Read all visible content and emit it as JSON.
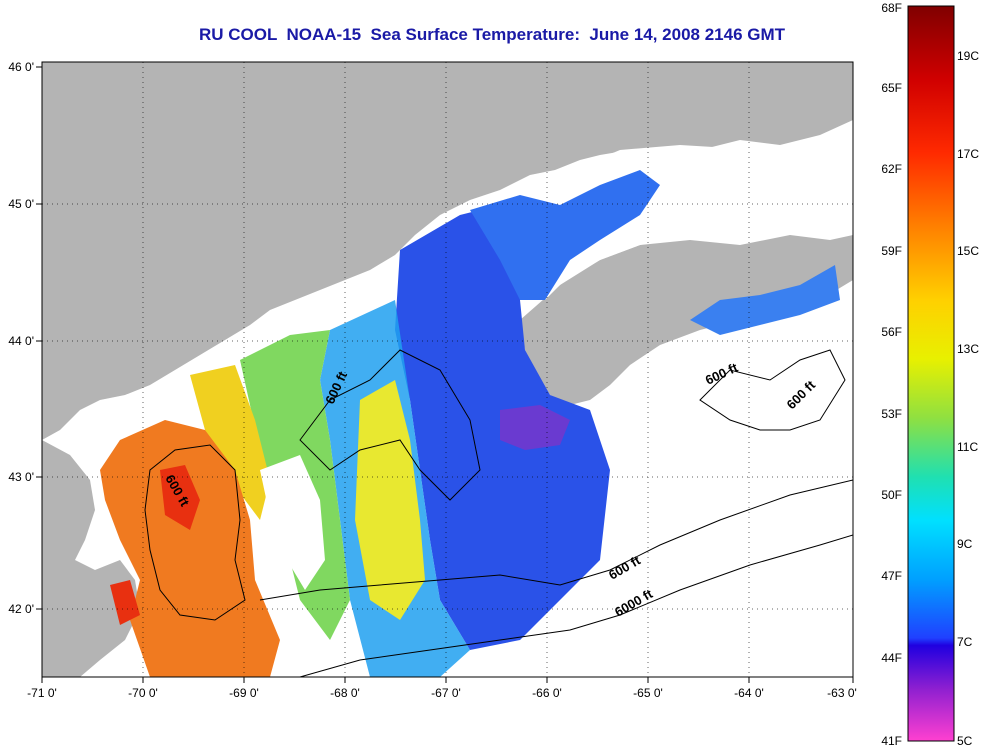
{
  "title": "RU COOL  NOAA-15  Sea Surface Temperature:  June 14, 2008 2146 GMT",
  "map": {
    "lon_ticks": [
      "-71 0'",
      "-70 0'",
      "-69 0'",
      "-68 0'",
      "-67 0'",
      "-66 0'",
      "-65 0'",
      "-64 0'",
      "-63 0'"
    ],
    "lat_ticks": [
      "46 0'",
      "45 0'",
      "44 0'",
      "43 0'",
      "42 0'"
    ],
    "contour_labels": [
      "600 ft",
      "600 ft",
      "600 ft",
      "600 ft",
      "600 ft",
      "6000 ft"
    ],
    "colors": {
      "land": "#b4b4b4",
      "no_data": "#ffffff",
      "warm": "#f07020",
      "cool": "#2050e0"
    }
  },
  "colorbar": {
    "fahrenheit_labels": [
      "68F",
      "65F",
      "62F",
      "59F",
      "56F",
      "53F",
      "50F",
      "47F",
      "44F",
      "41F"
    ],
    "celsius_labels": [
      "19C",
      "17C",
      "15C",
      "13C",
      "11C",
      "9C",
      "7C",
      "5C"
    ]
  }
}
